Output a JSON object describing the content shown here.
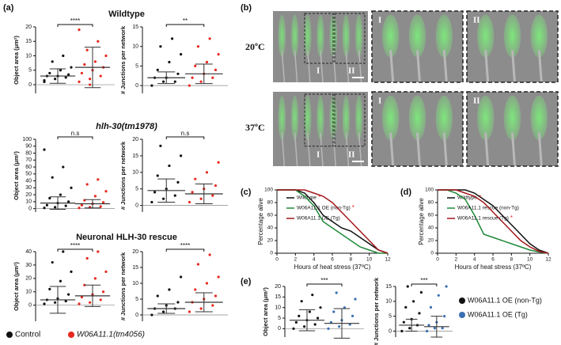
{
  "panel_a": {
    "label": "(a)",
    "legend": [
      {
        "name": "Control",
        "color": "#111111"
      },
      {
        "name": "W06A11.1(tm4056)",
        "color": "#e8281e"
      }
    ],
    "rows": [
      {
        "title": "Wildtype",
        "plots": [
          {
            "ylabel": "Object area (μm²)",
            "ylim": [
              -3,
              20
            ],
            "yticks": [
              0,
              5,
              10,
              15,
              20
            ],
            "significance": "****",
            "groups": [
              {
                "mean": 3,
                "sd": 2.5,
                "points": [
                  1,
                  2,
                  2.5,
                  3,
                  3,
                  3.5,
                  4,
                  5,
                  6,
                  8,
                  10,
                  1.5
                ]
              },
              {
                "mean": 6,
                "sd": 7,
                "points": [
                  1,
                  2,
                  3,
                  4,
                  5,
                  6,
                  7,
                  8,
                  10,
                  12,
                  15,
                  19,
                  0
                ]
              }
            ]
          },
          {
            "ylabel": "# Junctions per network",
            "ylim": [
              -2,
              15
            ],
            "yticks": [
              0,
              5,
              10,
              15
            ],
            "significance": "**",
            "groups": [
              {
                "mean": 2,
                "sd": 1.5,
                "points": [
                  0,
                  1,
                  1,
                  2,
                  2,
                  3,
                  4,
                  6,
                  8,
                  10,
                  12
                ]
              },
              {
                "mean": 3,
                "sd": 2.5,
                "points": [
                  0,
                  1,
                  2,
                  2,
                  3,
                  4,
                  5,
                  6,
                  8,
                  10,
                  12
                ]
              }
            ]
          }
        ]
      },
      {
        "title": "hlh-30(tm1978)",
        "plots": [
          {
            "ylabel": "Object area (μm²)",
            "ylim": [
              -5,
              100
            ],
            "yticks": [
              0,
              10,
              20,
              30,
              40,
              50,
              60,
              70,
              80,
              90,
              100
            ],
            "significance": "n.s",
            "groups": [
              {
                "mean": 8,
                "sd": 9,
                "points": [
                  1,
                  2,
                  4,
                  5,
                  8,
                  10,
                  15,
                  20,
                  30,
                  45,
                  60,
                  85
                ]
              },
              {
                "mean": 7,
                "sd": 6,
                "points": [
                  1,
                  2,
                  3,
                  5,
                  7,
                  9,
                  12,
                  18,
                  25,
                  35,
                  42
                ]
              }
            ]
          },
          {
            "ylabel": "# Junctions per network",
            "ylim": [
              -2,
              20
            ],
            "yticks": [
              0,
              5,
              10,
              15,
              20
            ],
            "significance": "n.s",
            "groups": [
              {
                "mean": 4.5,
                "sd": 3.5,
                "points": [
                  1,
                  2,
                  3,
                  4,
                  5,
                  7,
                  9,
                  12,
                  15,
                  18
                ]
              },
              {
                "mean": 3.5,
                "sd": 3,
                "points": [
                  1,
                  2,
                  3,
                  4,
                  5,
                  6,
                  8,
                  10,
                  13
                ]
              }
            ]
          }
        ]
      },
      {
        "title": "Neuronal HLH-30 rescue",
        "plots": [
          {
            "ylabel": "Object area (μm²)",
            "ylim": [
              -12,
              40
            ],
            "yticks": [
              0,
              10,
              20,
              30,
              40
            ],
            "significance": "****",
            "groups": [
              {
                "mean": 4,
                "sd": 10,
                "points": [
                  1,
                  2,
                  3,
                  4,
                  5,
                  8,
                  12,
                  18,
                  25,
                  32,
                  40
                ]
              },
              {
                "mean": 7,
                "sd": 8,
                "points": [
                  1,
                  2,
                  4,
                  6,
                  8,
                  10,
                  15,
                  20,
                  25,
                  35,
                  40
                ]
              }
            ]
          },
          {
            "ylabel": "# Junctions per network",
            "ylim": [
              -2,
              20
            ],
            "yticks": [
              0,
              5,
              10,
              15,
              20
            ],
            "significance": "****",
            "groups": [
              {
                "mean": 2,
                "sd": 1.5,
                "points": [
                  0,
                  1,
                  2,
                  2,
                  3,
                  4,
                  6,
                  8,
                  12
                ]
              },
              {
                "mean": 4,
                "sd": 3,
                "points": [
                  1,
                  2,
                  3,
                  4,
                  5,
                  6,
                  8,
                  10,
                  12,
                  16,
                  19
                ]
              }
            ]
          }
        ]
      }
    ]
  },
  "panel_b": {
    "label": "(b)",
    "temps": [
      "20ºC",
      "37ºC"
    ],
    "insets": [
      "I",
      "II"
    ]
  },
  "panel_c": {
    "label": "(c)",
    "chart_data": {
      "type": "line",
      "ylabel": "Percentage alive",
      "xlabel": "Hours of heat stress (37ºC)",
      "xlim": [
        0,
        12
      ],
      "xticks": [
        0,
        2,
        4,
        6,
        8,
        10,
        12
      ],
      "ylim": [
        0,
        100
      ],
      "yticks": [
        0,
        20,
        40,
        60,
        80,
        100
      ],
      "x": [
        0,
        1,
        2,
        3,
        4,
        5,
        6,
        7,
        8,
        9,
        10,
        11,
        12
      ],
      "series": [
        {
          "name": "Wildtype",
          "mark": "*",
          "color": "#111111",
          "values": [
            100,
            100,
            100,
            95,
            80,
            60,
            50,
            40,
            35,
            25,
            15,
            5,
            0
          ]
        },
        {
          "name": "W06A11.1 OE (non-Tg)",
          "mark": "*",
          "color": "#1f8a3a",
          "values": [
            100,
            100,
            100,
            90,
            75,
            50,
            40,
            30,
            20,
            10,
            5,
            0,
            0
          ]
        },
        {
          "name": "W06A11.1 OE (Tg)",
          "color": "#a3171b",
          "values": [
            100,
            100,
            100,
            100,
            95,
            90,
            80,
            65,
            50,
            35,
            20,
            5,
            0
          ]
        }
      ]
    }
  },
  "panel_d": {
    "label": "(d)",
    "chart_data": {
      "type": "line",
      "ylabel": "Percentage alive",
      "xlabel": "Hours of heat stress (37ºC)",
      "xlim": [
        0,
        12
      ],
      "xticks": [
        0,
        2,
        4,
        6,
        8,
        10,
        12
      ],
      "ylim": [
        0,
        100
      ],
      "yticks": [
        0,
        20,
        40,
        60,
        80,
        100
      ],
      "x": [
        0,
        1,
        2,
        3,
        4,
        5,
        6,
        7,
        8,
        9,
        10,
        11,
        12
      ],
      "series": [
        {
          "name": "Wildtype",
          "mark": "*",
          "color": "#111111",
          "values": [
            100,
            100,
            100,
            100,
            95,
            85,
            75,
            60,
            45,
            30,
            15,
            5,
            0
          ]
        },
        {
          "name": "W06A11.1 rescue (non-Tg)",
          "color": "#1f8a3a",
          "values": [
            100,
            100,
            95,
            85,
            60,
            30,
            25,
            20,
            15,
            10,
            5,
            2,
            0
          ]
        },
        {
          "name": "W06A11.1 rescue (Tg)",
          "mark": "*",
          "color": "#a3171b",
          "values": [
            100,
            100,
            100,
            95,
            90,
            80,
            65,
            50,
            35,
            20,
            10,
            3,
            0
          ]
        }
      ]
    }
  },
  "panel_e": {
    "label": "(e)",
    "legend": [
      {
        "name": "W06A11.1 OE (non-Tg)",
        "color": "#111111"
      },
      {
        "name": "W06A11.1 OE (Tg)",
        "color": "#3a70b3"
      }
    ],
    "plots": [
      {
        "ylabel": "Object area (μm²)",
        "ylim": [
          -4,
          20
        ],
        "yticks": [
          0,
          5,
          10,
          15,
          20
        ],
        "significance": "***",
        "groups": [
          {
            "mean": 4,
            "sd": 5,
            "points": [
              0,
              1,
              2,
              3,
              4,
              5,
              6,
              8,
              10,
              13,
              16
            ]
          },
          {
            "mean": 2.5,
            "sd": 7,
            "points": [
              0,
              1,
              2,
              3,
              4,
              6,
              8,
              10,
              14,
              17
            ]
          }
        ]
      },
      {
        "ylabel": "# Junctions per network",
        "ylim": [
          -2,
          15
        ],
        "yticks": [
          0,
          5,
          10,
          15
        ],
        "significance": "***",
        "groups": [
          {
            "mean": 2,
            "sd": 2,
            "points": [
              0,
              1,
              2,
              3,
              4,
              6,
              8,
              10,
              13,
              15
            ]
          },
          {
            "mean": 1.5,
            "sd": 3.5,
            "points": [
              0,
              1,
              1,
              2,
              3,
              5,
              8,
              12,
              15
            ]
          }
        ]
      }
    ]
  }
}
